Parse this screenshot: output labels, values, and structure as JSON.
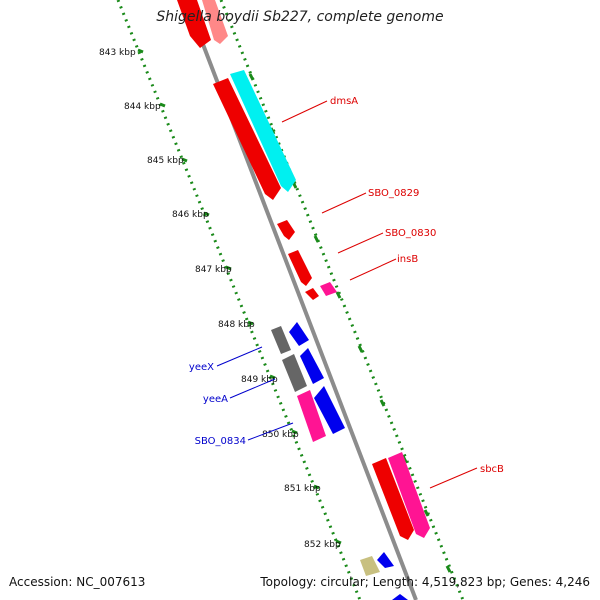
{
  "title": "Shigella boydii Sb227, complete genome",
  "footer": {
    "accession": "Accession: NC_007613",
    "topology": "Topology: circular; Length: 4,519,823 bp; Genes: 4,246"
  },
  "ticks": [
    "843 kbp",
    "844 kbp",
    "845 kbp",
    "846 kbp",
    "847 kbp",
    "848 kbp",
    "849 kbp",
    "850 kbp",
    "851 kbp",
    "852 kbp"
  ],
  "gene_labels": [
    {
      "text": "dmsA",
      "color": "#dd0000"
    },
    {
      "text": "SBO_0829",
      "color": "#dd0000"
    },
    {
      "text": "SBO_0830",
      "color": "#dd0000"
    },
    {
      "text": "insB",
      "color": "#dd0000"
    },
    {
      "text": "yeeX",
      "color": "#0000cc"
    },
    {
      "text": "yeeA",
      "color": "#0000cc"
    },
    {
      "text": "SBO_0834",
      "color": "#0000cc"
    },
    {
      "text": "sbcB",
      "color": "#dd0000"
    }
  ],
  "colors": {
    "backbone": "#8c8c8c",
    "dotted_track": "#1a8a1a",
    "red": "#ee0000",
    "cyan": "#00f0f0",
    "pink": "#ff1493",
    "blue": "#0000ee",
    "gray": "#666666",
    "khaki": "#c8c080"
  }
}
